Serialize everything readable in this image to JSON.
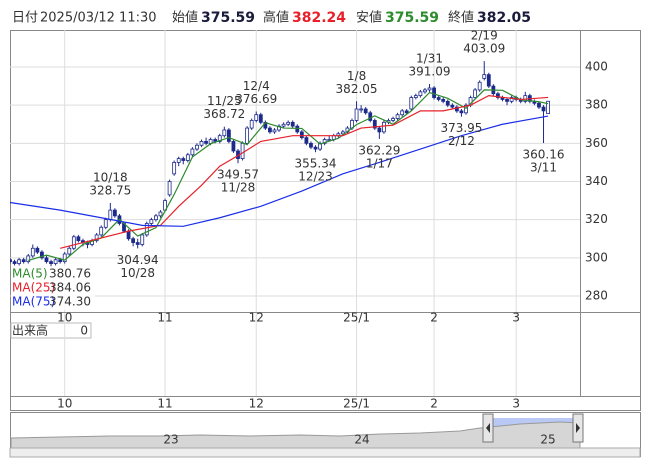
{
  "header": {
    "date_label": "日付",
    "datetime": "2025/03/12 11:30",
    "open_label": "始値",
    "open": 375.59,
    "high_label": "高値",
    "high": 382.24,
    "low_label": "安値",
    "low": 375.59,
    "close_label": "終値",
    "close": 382.05
  },
  "chart_data": {
    "type": "candlestick",
    "x": [
      0,
      1,
      2,
      3,
      4,
      5,
      6,
      7,
      8,
      9,
      10,
      11,
      12,
      13,
      14,
      15,
      16,
      17,
      18,
      19,
      20,
      21,
      22,
      23,
      24,
      25,
      26,
      27,
      28,
      29,
      30,
      31,
      32,
      33,
      34,
      35,
      36,
      37,
      38,
      39,
      40,
      41,
      42,
      43,
      44,
      45,
      46,
      47,
      48,
      49,
      50,
      51,
      52,
      53,
      54,
      55,
      56,
      57,
      58,
      59,
      60,
      61,
      62,
      63,
      64,
      65,
      66,
      67,
      68,
      69,
      70,
      71,
      72,
      73,
      74,
      75,
      76,
      77,
      78,
      79,
      80,
      81,
      82,
      83,
      84,
      85,
      86,
      87,
      88,
      89,
      90,
      91,
      92,
      93,
      94,
      95,
      96,
      97,
      98,
      99,
      100,
      101,
      102,
      103,
      104,
      105,
      106,
      107,
      108,
      109,
      110,
      111,
      112,
      113,
      114,
      115,
      116,
      117,
      118
    ],
    "ohlc": [
      [
        299,
        300,
        297,
        298
      ],
      [
        298,
        299,
        296,
        297
      ],
      [
        297,
        300,
        296,
        299
      ],
      [
        299,
        300,
        297,
        298
      ],
      [
        298,
        302,
        297,
        301
      ],
      [
        301,
        307,
        300,
        305
      ],
      [
        305,
        306,
        302,
        303
      ],
      [
        303,
        304,
        299,
        300
      ],
      [
        300,
        301,
        297,
        298
      ],
      [
        298,
        299,
        295,
        297
      ],
      [
        297,
        300,
        296,
        299
      ],
      [
        299,
        300,
        297,
        298
      ],
      [
        298,
        303,
        297,
        302
      ],
      [
        302,
        306,
        301,
        305
      ],
      [
        305,
        312,
        304,
        311
      ],
      [
        311,
        312,
        308,
        309
      ],
      [
        309,
        310,
        306,
        308
      ],
      [
        308,
        309,
        305,
        307
      ],
      [
        307,
        310,
        306,
        309
      ],
      [
        309,
        313,
        308,
        312
      ],
      [
        312,
        317,
        311,
        316
      ],
      [
        316,
        321,
        315,
        320
      ],
      [
        320,
        328.75,
        319,
        325
      ],
      [
        325,
        326,
        321,
        322
      ],
      [
        322,
        323,
        317,
        318
      ],
      [
        318,
        319,
        313,
        314
      ],
      [
        314,
        315,
        309,
        310
      ],
      [
        310,
        311,
        306,
        308
      ],
      [
        308,
        310,
        304.94,
        307
      ],
      [
        307,
        313,
        306,
        312
      ],
      [
        312,
        319,
        311,
        318
      ],
      [
        318,
        321,
        317,
        320
      ],
      [
        320,
        323,
        319,
        322
      ],
      [
        322,
        325,
        321,
        324
      ],
      [
        325,
        331,
        324,
        330
      ],
      [
        333,
        341,
        332,
        340
      ],
      [
        344,
        351,
        343,
        350
      ],
      [
        350,
        353,
        348,
        352
      ],
      [
        352,
        353,
        349,
        351
      ],
      [
        351,
        355,
        350,
        354
      ],
      [
        354,
        358,
        353,
        357
      ],
      [
        357,
        360,
        356,
        359
      ],
      [
        359,
        362,
        358,
        361
      ],
      [
        361,
        363,
        359,
        360
      ],
      [
        360,
        363,
        359,
        362
      ],
      [
        362,
        363,
        360,
        361
      ],
      [
        361,
        365,
        360,
        364
      ],
      [
        364,
        368.72,
        363,
        367
      ],
      [
        367,
        368,
        360,
        361
      ],
      [
        361,
        362,
        355,
        356
      ],
      [
        356,
        357,
        349.57,
        352
      ],
      [
        352,
        361,
        351,
        360
      ],
      [
        360,
        369,
        359,
        368
      ],
      [
        368,
        373,
        367,
        372
      ],
      [
        372,
        376.69,
        371,
        375
      ],
      [
        375,
        376,
        370,
        371
      ],
      [
        371,
        372,
        367,
        368
      ],
      [
        368,
        369,
        365,
        366
      ],
      [
        366,
        368,
        365,
        367
      ],
      [
        367,
        370,
        366,
        369
      ],
      [
        369,
        371,
        368,
        370
      ],
      [
        370,
        372,
        369,
        371
      ],
      [
        371,
        372,
        368,
        369
      ],
      [
        369,
        370,
        365,
        366
      ],
      [
        366,
        367,
        362,
        363
      ],
      [
        363,
        364,
        359,
        360
      ],
      [
        360,
        361,
        357,
        358
      ],
      [
        358,
        359,
        355.34,
        357
      ],
      [
        357,
        361,
        356,
        360
      ],
      [
        360,
        363,
        359,
        362
      ],
      [
        362,
        364,
        361,
        362
      ],
      [
        362,
        365,
        361,
        364
      ],
      [
        364,
        366,
        363,
        365
      ],
      [
        365,
        367,
        364,
        366
      ],
      [
        366,
        369,
        365,
        368
      ],
      [
        368,
        373,
        367,
        372
      ],
      [
        372,
        382.05,
        371,
        378
      ],
      [
        378,
        380,
        376,
        378
      ],
      [
        378,
        379,
        375,
        376
      ],
      [
        376,
        377,
        371,
        372
      ],
      [
        372,
        373,
        367,
        368
      ],
      [
        368,
        369,
        362.29,
        366
      ],
      [
        366,
        372,
        365,
        371
      ],
      [
        371,
        373,
        370,
        372
      ],
      [
        372,
        374,
        371,
        373
      ],
      [
        373,
        376,
        372,
        375
      ],
      [
        375,
        378,
        374,
        377
      ],
      [
        377,
        378,
        375,
        376
      ],
      [
        378,
        385,
        377,
        384
      ],
      [
        384,
        386,
        383,
        385
      ],
      [
        385,
        388,
        384,
        387
      ],
      [
        387,
        389,
        386,
        388
      ],
      [
        388,
        391.09,
        387,
        389
      ],
      [
        389,
        390,
        383,
        384
      ],
      [
        384,
        385,
        382,
        383
      ],
      [
        383,
        384,
        381,
        382
      ],
      [
        382,
        383,
        379,
        380
      ],
      [
        380,
        381,
        378,
        379
      ],
      [
        379,
        380,
        376,
        377
      ],
      [
        377,
        378,
        373.95,
        376
      ],
      [
        376,
        381,
        375,
        380
      ],
      [
        380,
        385,
        379,
        384
      ],
      [
        384,
        389,
        383,
        388
      ],
      [
        388,
        393,
        387,
        392
      ],
      [
        394,
        403.09,
        393,
        396
      ],
      [
        396,
        397,
        389,
        390
      ],
      [
        390,
        391,
        385,
        386
      ],
      [
        386,
        387,
        383,
        384
      ],
      [
        384,
        385,
        382,
        383
      ],
      [
        383,
        384,
        380,
        382
      ],
      [
        382,
        385,
        381,
        384
      ],
      [
        384,
        385,
        382,
        383
      ],
      [
        383,
        384,
        381,
        382
      ],
      [
        382,
        387,
        381,
        385
      ],
      [
        385,
        386,
        381,
        382
      ],
      [
        382,
        383,
        380,
        381
      ],
      [
        381,
        382,
        378,
        379
      ],
      [
        379,
        380,
        360.16,
        377
      ],
      [
        375.59,
        382.24,
        375.59,
        382.05
      ]
    ],
    "up_color": "#ffffff",
    "down_color": "#1c2a8c",
    "series": [
      {
        "name": "MA(5)",
        "color": "#2e8b2e",
        "x": [
          4,
          8,
          12,
          16,
          20,
          24,
          28,
          32,
          36,
          40,
          44,
          48,
          52,
          56,
          60,
          64,
          68,
          72,
          76,
          80,
          84,
          88,
          92,
          96,
          100,
          104,
          108,
          112,
          116,
          118
        ],
        "values": [
          298.6,
          301.4,
          298.8,
          307,
          310.4,
          320.2,
          311.4,
          315.8,
          333.2,
          352.8,
          359.8,
          363,
          359.4,
          370.8,
          368,
          367.8,
          359.6,
          362.6,
          369.8,
          374.4,
          370,
          377,
          386.6,
          383.6,
          378.4,
          388,
          387.8,
          382.8,
          381.8,
          380.76
        ]
      },
      {
        "name": "MA(25)",
        "color": "#e8202a",
        "x": [
          11,
          26,
          33,
          37,
          42,
          46,
          51,
          55,
          62,
          68,
          73,
          77,
          84,
          90,
          95,
          101,
          105,
          112,
          118
        ],
        "values": [
          305,
          314,
          317,
          327,
          338,
          348,
          355,
          361,
          364,
          364,
          364,
          368,
          369.5,
          377,
          377,
          380,
          385,
          383,
          384.06
        ]
      },
      {
        "name": "MA(75)",
        "color": "#1a2ee8",
        "x": [
          0,
          11,
          20,
          29,
          38,
          46,
          55,
          64,
          73,
          81,
          90,
          99,
          108,
          118
        ],
        "values": [
          329,
          325,
          321,
          317,
          316.5,
          321,
          327,
          335,
          344,
          350,
          357,
          364,
          370,
          374.3
        ],
        "value_labels": [
          null,
          null,
          null,
          null,
          null,
          null,
          null,
          null,
          null,
          null,
          null,
          null,
          null,
          "374.30"
        ]
      }
    ],
    "annotations": [
      {
        "x": 22,
        "date": "10/18",
        "value": 328.75
      },
      {
        "x": 28,
        "date": "10/28",
        "value": 304.94
      },
      {
        "x": 47,
        "date": "11/25",
        "value": 368.72
      },
      {
        "x": 50,
        "date": "11/28",
        "value": 349.57
      },
      {
        "x": 54,
        "date": "12/4",
        "value": 376.69
      },
      {
        "x": 67,
        "date": "12/23",
        "value": 355.34
      },
      {
        "x": 76,
        "date": "1/8",
        "value": 382.05
      },
      {
        "x": 81,
        "date": "1/17",
        "value": 362.29
      },
      {
        "x": 92,
        "date": "1/31",
        "value": 391.09
      },
      {
        "x": 99,
        "date": "2/12",
        "value": 373.95
      },
      {
        "x": 104,
        "date": "2/19",
        "value": 403.09
      },
      {
        "x": 117,
        "date": "3/11",
        "value": 360.16
      }
    ],
    "xlim": [
      0,
      125
    ],
    "xticks": [
      {
        "value": 12,
        "label": "10"
      },
      {
        "value": 34,
        "label": "11"
      },
      {
        "value": 54,
        "label": "12"
      },
      {
        "value": 76,
        "label": "25/1"
      },
      {
        "value": 93,
        "label": "2"
      },
      {
        "value": 111,
        "label": "3"
      }
    ],
    "ylim": [
      271.6,
      419.4
    ],
    "yticks": [
      280,
      300,
      320,
      340,
      360,
      380,
      400
    ],
    "grid": true,
    "legend": "lower-left"
  },
  "volume_panel": {
    "label": "出来高",
    "value": 0
  },
  "navigator": {
    "labels": [
      "23",
      "24",
      "25"
    ]
  }
}
